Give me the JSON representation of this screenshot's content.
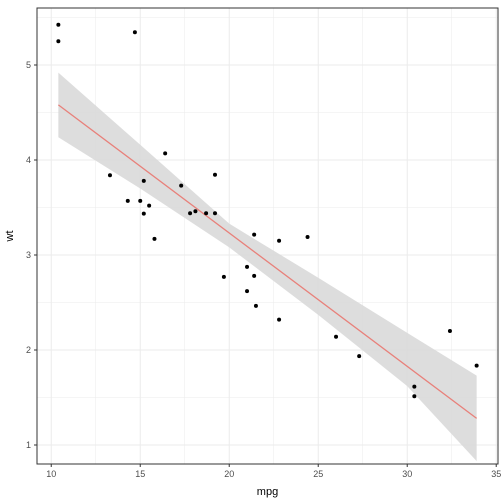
{
  "chart_data": {
    "type": "scatter",
    "xlabel": "mpg",
    "ylabel": "wt",
    "xlim": [
      9.2,
      35.1
    ],
    "ylim": [
      0.8,
      5.6
    ],
    "x_ticks": [
      10,
      15,
      20,
      25,
      30,
      35
    ],
    "y_ticks": [
      1,
      2,
      3,
      4,
      5
    ],
    "x_tick_labels": [
      "10",
      "15",
      "20",
      "25",
      "30",
      "35"
    ],
    "y_tick_labels": [
      "1",
      "2",
      "3",
      "4",
      "5"
    ],
    "grid": true,
    "legend": "none",
    "points": [
      {
        "x": 21.0,
        "y": 2.62
      },
      {
        "x": 21.0,
        "y": 2.875
      },
      {
        "x": 22.8,
        "y": 2.32
      },
      {
        "x": 21.4,
        "y": 3.215
      },
      {
        "x": 18.7,
        "y": 3.44
      },
      {
        "x": 18.1,
        "y": 3.46
      },
      {
        "x": 14.3,
        "y": 3.57
      },
      {
        "x": 24.4,
        "y": 3.19
      },
      {
        "x": 22.8,
        "y": 3.15
      },
      {
        "x": 19.2,
        "y": 3.44
      },
      {
        "x": 17.8,
        "y": 3.44
      },
      {
        "x": 16.4,
        "y": 4.07
      },
      {
        "x": 17.3,
        "y": 3.73
      },
      {
        "x": 15.2,
        "y": 3.78
      },
      {
        "x": 10.4,
        "y": 5.25
      },
      {
        "x": 10.4,
        "y": 5.424
      },
      {
        "x": 14.7,
        "y": 5.345
      },
      {
        "x": 32.4,
        "y": 2.2
      },
      {
        "x": 30.4,
        "y": 1.615
      },
      {
        "x": 33.9,
        "y": 1.835
      },
      {
        "x": 21.5,
        "y": 2.465
      },
      {
        "x": 15.5,
        "y": 3.52
      },
      {
        "x": 15.2,
        "y": 3.435
      },
      {
        "x": 13.3,
        "y": 3.84
      },
      {
        "x": 19.2,
        "y": 3.845
      },
      {
        "x": 27.3,
        "y": 1.935
      },
      {
        "x": 26.0,
        "y": 2.14
      },
      {
        "x": 30.4,
        "y": 1.513
      },
      {
        "x": 15.8,
        "y": 3.17
      },
      {
        "x": 19.7,
        "y": 2.77
      },
      {
        "x": 15.0,
        "y": 3.57
      },
      {
        "x": 21.4,
        "y": 2.78
      }
    ],
    "fit_line": {
      "x": [
        10.4,
        33.9
      ],
      "y": [
        4.58,
        1.28
      ]
    },
    "confidence_band": {
      "x": [
        10.4,
        15,
        20,
        25,
        30,
        33.9
      ],
      "lower": [
        4.24,
        3.7,
        3.08,
        2.37,
        1.62,
        0.83
      ],
      "upper": [
        4.92,
        4.16,
        3.33,
        2.76,
        2.18,
        1.73
      ]
    },
    "colors": {
      "points": "#000000",
      "fit_line": "#e8807a",
      "band": "#d9d9d9",
      "grid": "#ebebeb",
      "panel_border": "#333333"
    }
  }
}
